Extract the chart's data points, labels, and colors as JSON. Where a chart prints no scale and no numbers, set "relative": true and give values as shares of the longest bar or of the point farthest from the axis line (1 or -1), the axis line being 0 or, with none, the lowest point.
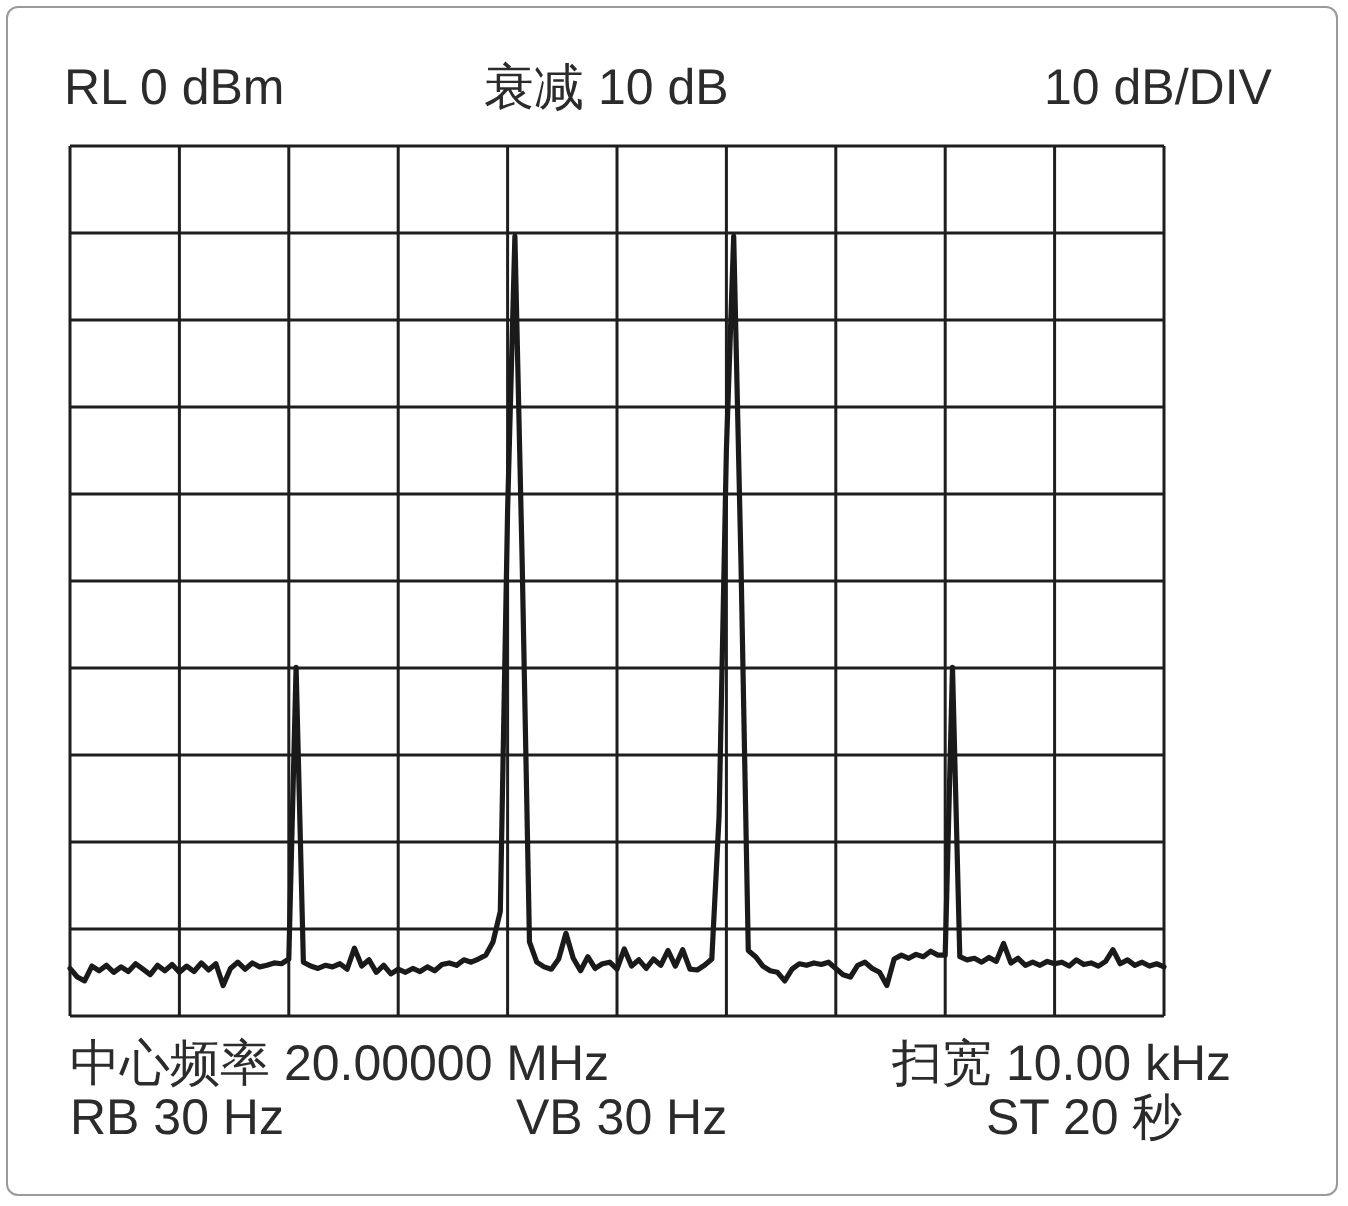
{
  "chart_data": {
    "type": "line",
    "relative": true,
    "annotations": [
      "RL 0 dBm",
      "衰减 10 dB",
      "10 dB/DIV",
      "中心频率 20.00000 MHz",
      "扫宽 10.00 kHz",
      "RB 30 Hz",
      "VB 30 Hz",
      "ST 20 秒"
    ],
    "categories": [
      null,
      null,
      null,
      null,
      null,
      null,
      null,
      null,
      null,
      null,
      null,
      null,
      null,
      null,
      null,
      null,
      null,
      null,
      null,
      null,
      null,
      null,
      null,
      null,
      null,
      null,
      null,
      null,
      null,
      null,
      null,
      null,
      null,
      null,
      null,
      null,
      null,
      null,
      null,
      null,
      null,
      null,
      null,
      null,
      null,
      null,
      null,
      null,
      null,
      null,
      null,
      null,
      null,
      null,
      null,
      null,
      null,
      null,
      null,
      null,
      null,
      null,
      null,
      null,
      null,
      null,
      null,
      null,
      null,
      null,
      null,
      null,
      null,
      null,
      null,
      null,
      null,
      null,
      null,
      null,
      null,
      null,
      null,
      null,
      null,
      null,
      null,
      null,
      null,
      null,
      null,
      null,
      null,
      null,
      null,
      null,
      null,
      null,
      null,
      null,
      null,
      null,
      null,
      null,
      null,
      null,
      null,
      null,
      null,
      null,
      null,
      null,
      null,
      null,
      null,
      null,
      null,
      null,
      null,
      null,
      null,
      null,
      null,
      null,
      null,
      null,
      null,
      null,
      null,
      null,
      null,
      null,
      null,
      null,
      null,
      null,
      null,
      null,
      null,
      null,
      null,
      null,
      null,
      null,
      null,
      null,
      null,
      null,
      null,
      null,
      null
    ],
    "values": [
      0.061,
      0.05,
      0.045,
      0.064,
      0.058,
      0.065,
      0.056,
      0.063,
      0.057,
      0.067,
      0.06,
      0.053,
      0.065,
      0.058,
      0.066,
      0.056,
      0.064,
      0.057,
      0.068,
      0.059,
      0.067,
      0.039,
      0.061,
      0.069,
      0.06,
      0.068,
      0.063,
      0.065,
      0.068,
      0.067,
      0.073,
      0.447,
      0.069,
      0.064,
      0.061,
      0.065,
      0.063,
      0.067,
      0.06,
      0.087,
      0.064,
      0.072,
      0.056,
      0.065,
      0.054,
      0.06,
      0.056,
      0.061,
      0.057,
      0.063,
      0.058,
      0.066,
      0.068,
      0.065,
      0.072,
      0.069,
      0.073,
      0.078,
      0.095,
      0.134,
      0.648,
      1,
      0.581,
      0.095,
      0.069,
      0.063,
      0.06,
      0.073,
      0.106,
      0.074,
      0.058,
      0.076,
      0.061,
      0.067,
      0.069,
      0.06,
      0.086,
      0.064,
      0.072,
      0.061,
      0.073,
      0.065,
      0.084,
      0.064,
      0.085,
      0.06,
      0.059,
      0.065,
      0.073,
      0.257,
      0.726,
      1,
      0.581,
      0.084,
      0.076,
      0.064,
      0.058,
      0.056,
      0.045,
      0.06,
      0.067,
      0.065,
      0.068,
      0.066,
      0.069,
      0.061,
      0.053,
      0.05,
      0.065,
      0.069,
      0.061,
      0.056,
      0.039,
      0.073,
      0.078,
      0.074,
      0.079,
      0.076,
      0.083,
      0.078,
      0.078,
      0.447,
      0.076,
      0.072,
      0.074,
      0.069,
      0.075,
      0.07,
      0.093,
      0.068,
      0.074,
      0.065,
      0.069,
      0.065,
      0.07,
      0.067,
      0.069,
      0.064,
      0.072,
      0.066,
      0.068,
      0.064,
      0.07,
      0.085,
      0.067,
      0.072,
      0.065,
      0.069,
      0.064,
      0.067,
      0.063
    ],
    "color": "#1a1a1a",
    "grid": true
  }
}
